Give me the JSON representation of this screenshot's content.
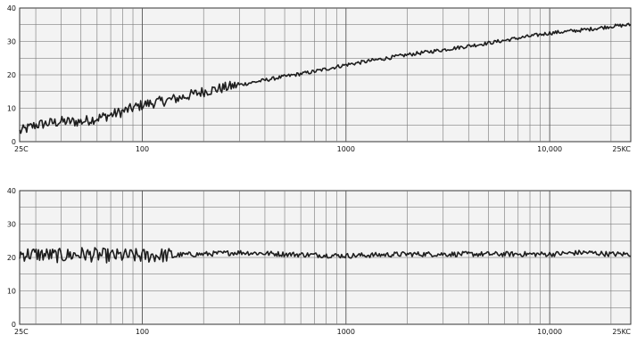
{
  "chart_data": [
    {
      "type": "line",
      "x_scale": "log",
      "xlim": [
        25,
        25000
      ],
      "ylim": [
        0,
        40
      ],
      "grid": true,
      "x_tick_labels": [
        {
          "value": 25,
          "label": "25C"
        },
        {
          "value": 100,
          "label": "100"
        },
        {
          "value": 1000,
          "label": "1000"
        },
        {
          "value": 10000,
          "label": "10,000"
        },
        {
          "value": 25000,
          "label": "25KC"
        }
      ],
      "y_ticks": [
        0,
        10,
        20,
        30,
        40
      ],
      "y_tick_labels": [
        "0",
        "10",
        "20",
        "30",
        "40"
      ],
      "series": [
        {
          "x": [
            25,
            30,
            40,
            50,
            60,
            70,
            80,
            100,
            150,
            200,
            300,
            500,
            700,
            1000,
            2000,
            3000,
            5000,
            7000,
            10000,
            15000,
            20000,
            25000
          ],
          "y": [
            3,
            5,
            6,
            6,
            7,
            8,
            9,
            11,
            13,
            15,
            17,
            19.5,
            21,
            23,
            26,
            27.5,
            29.5,
            31,
            32.5,
            33.5,
            34.5,
            35
          ],
          "noise": 1.6,
          "noise_cutoff_hz": 300
        }
      ]
    },
    {
      "type": "line",
      "x_scale": "log",
      "xlim": [
        25,
        25000
      ],
      "ylim": [
        0,
        40
      ],
      "grid": true,
      "x_tick_labels": [
        {
          "value": 25,
          "label": "25C"
        },
        {
          "value": 100,
          "label": "100"
        },
        {
          "value": 1000,
          "label": "1000"
        },
        {
          "value": 10000,
          "label": "10,000"
        },
        {
          "value": 25000,
          "label": "25KC"
        }
      ],
      "y_ticks": [
        0,
        10,
        20,
        30,
        40
      ],
      "y_tick_labels": [
        "0",
        "10",
        "20",
        "30",
        "40"
      ],
      "series": [
        {
          "x": [
            25,
            30,
            40,
            50,
            70,
            100,
            200,
            300,
            500,
            1000,
            2000,
            3000,
            5000,
            10000,
            15000,
            20000,
            25000
          ],
          "y": [
            21,
            21,
            20.5,
            21,
            20.5,
            20.5,
            21,
            21.5,
            21,
            20.5,
            21,
            21,
            21,
            21,
            21.5,
            21,
            21
          ],
          "noise": 2.2,
          "noise_cutoff_hz": 150
        }
      ]
    }
  ]
}
